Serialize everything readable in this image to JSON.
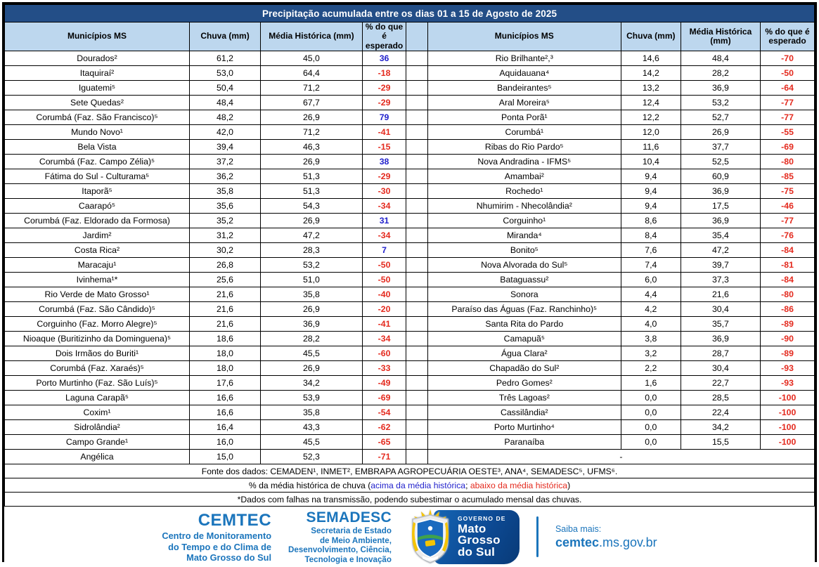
{
  "title": "Precipitação acumulada entre os dias 01 a 15 de Agosto de 2025",
  "colors": {
    "title_bg": "#234E87",
    "header_bg": "#BDD7EE",
    "positive": "#2222CC",
    "negative": "#E42A1E",
    "brand_blue": "#1B75BC",
    "gov_plate_blue": "#0D4A94"
  },
  "tables": {
    "left": {
      "columns": [
        "Municípios MS",
        "Chuva (mm)",
        "Média Histórica (mm)",
        "% do que é esperado"
      ],
      "rows": [
        [
          "Dourados²",
          "61,2",
          "45,0",
          "36"
        ],
        [
          "Itaquiraí²",
          "53,0",
          "64,4",
          "-18"
        ],
        [
          "Iguatemi⁵",
          "50,4",
          "71,2",
          "-29"
        ],
        [
          "Sete Quedas²",
          "48,4",
          "67,7",
          "-29"
        ],
        [
          "Corumbá (Faz. São Francisco)⁵",
          "48,2",
          "26,9",
          "79"
        ],
        [
          "Mundo Novo¹",
          "42,0",
          "71,2",
          "-41"
        ],
        [
          "Bela Vista",
          "39,4",
          "46,3",
          "-15"
        ],
        [
          "Corumbá (Faz. Campo Zélia)⁵",
          "37,2",
          "26,9",
          "38"
        ],
        [
          "Fátima do Sul - Culturama⁵",
          "36,2",
          "51,3",
          "-29"
        ],
        [
          "Itaporã⁵",
          "35,8",
          "51,3",
          "-30"
        ],
        [
          "Caarapó⁵",
          "35,6",
          "54,3",
          "-34"
        ],
        [
          "Corumbá (Faz. Eldorado da Formosa)",
          "35,2",
          "26,9",
          "31"
        ],
        [
          "Jardim²",
          "31,2",
          "47,2",
          "-34"
        ],
        [
          "Costa Rica²",
          "30,2",
          "28,3",
          "7"
        ],
        [
          "Maracaju¹",
          "26,8",
          "53,2",
          "-50"
        ],
        [
          "Ivinhema¹*",
          "25,6",
          "51,0",
          "-50"
        ],
        [
          "Rio Verde de Mato Grosso¹",
          "21,6",
          "35,8",
          "-40"
        ],
        [
          "Corumbá (Faz. São Cândido)⁵",
          "21,6",
          "26,9",
          "-20"
        ],
        [
          "Corguinho (Faz. Morro Alegre)⁵",
          "21,6",
          "36,9",
          "-41"
        ],
        [
          "Nioaque (Buritizinho da Dominguena)⁵",
          "18,6",
          "28,2",
          "-34"
        ],
        [
          "Dois Irmãos do Buriti¹",
          "18,0",
          "45,5",
          "-60"
        ],
        [
          "Corumbá (Faz. Xaraés)⁵",
          "18,0",
          "26,9",
          "-33"
        ],
        [
          "Porto Murtinho (Faz. São Luís)⁵",
          "17,6",
          "34,2",
          "-49"
        ],
        [
          "Laguna Carapã⁵",
          "16,6",
          "53,9",
          "-69"
        ],
        [
          "Coxim¹",
          "16,6",
          "35,8",
          "-54"
        ],
        [
          "Sidrolândia²",
          "16,4",
          "43,3",
          "-62"
        ],
        [
          "Campo Grande¹",
          "16,0",
          "45,5",
          "-65"
        ],
        [
          "Angélica",
          "15,0",
          "52,3",
          "-71"
        ]
      ]
    },
    "right": {
      "columns": [
        "Municípios MS",
        "Chuva (mm)",
        "Média Histórica (mm)",
        "% do que é esperado"
      ],
      "rows": [
        [
          "Rio Brilhante²,³",
          "14,6",
          "48,4",
          "-70"
        ],
        [
          "Aquidauana⁴",
          "14,2",
          "28,2",
          "-50"
        ],
        [
          "Bandeirantes⁵",
          "13,2",
          "36,9",
          "-64"
        ],
        [
          "Aral Moreira⁵",
          "12,4",
          "53,2",
          "-77"
        ],
        [
          "Ponta Porã¹",
          "12,2",
          "52,7",
          "-77"
        ],
        [
          "Corumbá¹",
          "12,0",
          "26,9",
          "-55"
        ],
        [
          "Ribas do Rio Pardo⁵",
          "11,6",
          "37,7",
          "-69"
        ],
        [
          "Nova Andradina - IFMS⁵",
          "10,4",
          "52,5",
          "-80"
        ],
        [
          "Amambai²",
          "9,4",
          "60,9",
          "-85"
        ],
        [
          "Rochedo¹",
          "9,4",
          "36,9",
          "-75"
        ],
        [
          "Nhumirim - Nhecolândia²",
          "9,4",
          "17,5",
          "-46"
        ],
        [
          "Corguinho¹",
          "8,6",
          "36,9",
          "-77"
        ],
        [
          "Miranda⁴",
          "8,4",
          "35,4",
          "-76"
        ],
        [
          "Bonito⁵",
          "7,6",
          "47,2",
          "-84"
        ],
        [
          "Nova Alvorada do Sul⁵",
          "7,4",
          "39,7",
          "-81"
        ],
        [
          "Bataguassu²",
          "6,0",
          "37,3",
          "-84"
        ],
        [
          "Sonora",
          "4,4",
          "21,6",
          "-80"
        ],
        [
          "Paraíso das Águas (Faz. Ranchinho)⁵",
          "4,2",
          "30,4",
          "-86"
        ],
        [
          "Santa Rita do Pardo",
          "4,0",
          "35,7",
          "-89"
        ],
        [
          "Camapuã⁵",
          "3,8",
          "36,9",
          "-90"
        ],
        [
          "Água Clara²",
          "3,2",
          "28,7",
          "-89"
        ],
        [
          "Chapadão do Sul²",
          "2,2",
          "30,4",
          "-93"
        ],
        [
          "Pedro Gomes²",
          "1,6",
          "22,7",
          "-93"
        ],
        [
          "Três Lagoas²",
          "0,0",
          "28,5",
          "-100"
        ],
        [
          "Cassilândia²",
          "0,0",
          "22,4",
          "-100"
        ],
        [
          "Porto Murtinho⁴",
          "0,0",
          "34,2",
          "-100"
        ],
        [
          "Paranaíba",
          "0,0",
          "15,5",
          "-100"
        ]
      ],
      "last_row_placeholder": "-"
    }
  },
  "notes": {
    "source": "Fonte dos dados:  CEMADEN¹, INMET², EMBRAPA AGROPECUÁRIA OESTE³, ANA⁴, SEMADESC⁵, UFMS⁶.",
    "legend_prefix": "% da média histórica de chuva (",
    "legend_above": "acima da média histórica",
    "legend_separator": "; ",
    "legend_below": "abaixo da média histórica",
    "legend_suffix": ")",
    "disclaimer": "*Dados com falhas na transmissão, podendo subestimar o acumulado mensal das chuvas."
  },
  "footer": {
    "cemtec_name": "CEMTEC",
    "cemtec_desc_lines": [
      "Centro de Monitoramento",
      "do Tempo e do Clima de",
      "Mato Grosso do Sul"
    ],
    "semadesc_name": "SEMADESC",
    "semadesc_desc_lines": [
      "Secretaria de Estado",
      "de Meio Ambiente,",
      "Desenvolvimento, Ciência,",
      "Tecnologia e Inovação"
    ],
    "gov_label": "GOVERNO DE",
    "gov_name_lines": [
      "Mato",
      "Grosso",
      "do Sul"
    ],
    "more_label": "Saiba mais:",
    "site_bold": "cemtec",
    "site_rest": ".ms.gov.br"
  }
}
